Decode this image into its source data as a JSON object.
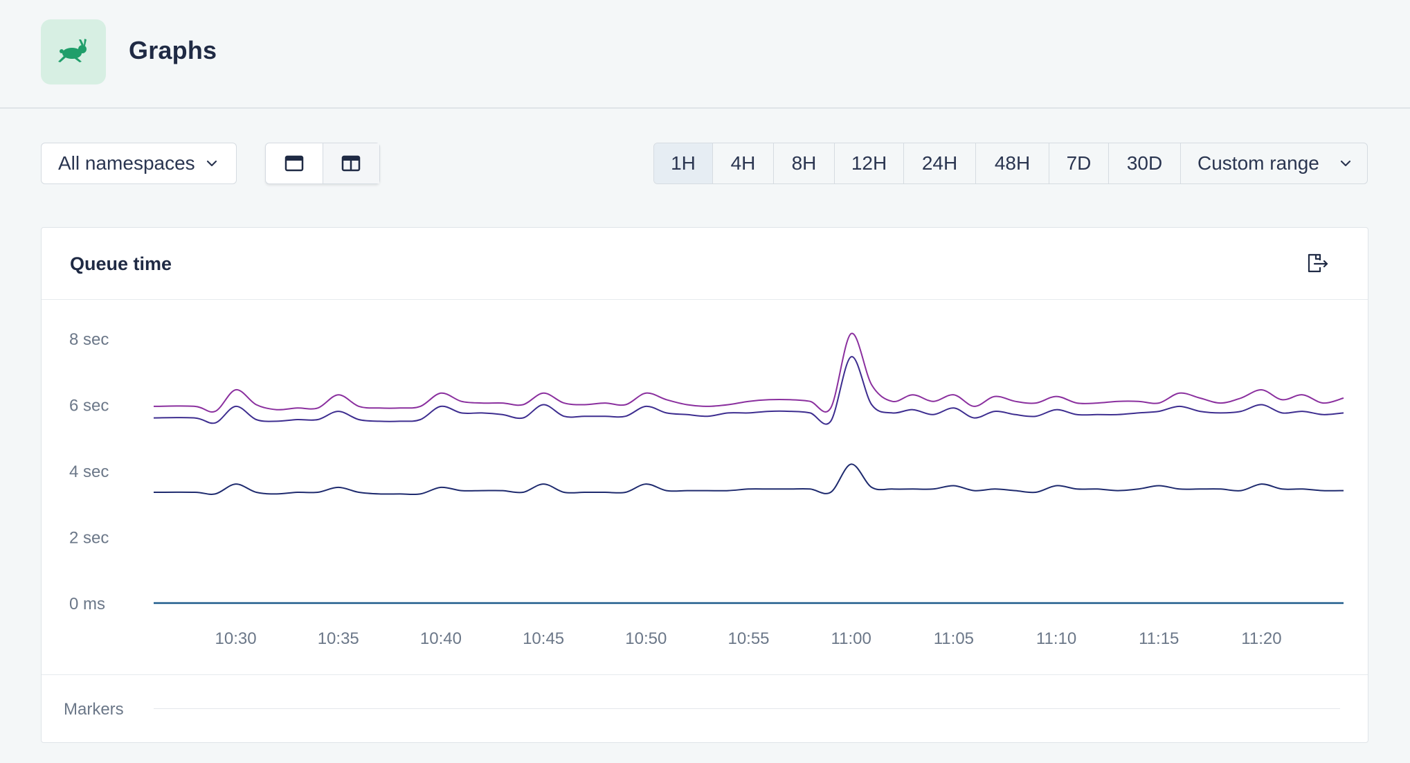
{
  "header": {
    "title": "Graphs",
    "logo_icon": "rabbit-logo-icon",
    "logo_bg": "#d7efe3",
    "logo_color": "#1f9e6a"
  },
  "toolbar": {
    "namespace_select": "All namespaces",
    "layout_buttons": [
      {
        "name": "single-column-layout",
        "icon": "single-column-icon"
      },
      {
        "name": "two-column-layout",
        "icon": "two-column-icon"
      }
    ],
    "ranges": [
      "1H",
      "4H",
      "8H",
      "12H",
      "24H",
      "48H",
      "7D",
      "30D"
    ],
    "active_range": "1H",
    "custom_range": "Custom range"
  },
  "card": {
    "title": "Queue time",
    "export_icon": "export-file-icon",
    "markers_label": "Markers"
  },
  "chart_data": {
    "type": "line",
    "title": "Queue time",
    "y_unit": "sec",
    "ylim": [
      0,
      8
    ],
    "y_ticks": [
      {
        "value": 8,
        "label": "8 sec"
      },
      {
        "value": 6,
        "label": "6 sec"
      },
      {
        "value": 4,
        "label": "4 sec"
      },
      {
        "value": 2,
        "label": "2 sec"
      },
      {
        "value": 0,
        "label": "0 ms"
      }
    ],
    "x_ticks": [
      "10:30",
      "10:35",
      "10:40",
      "10:45",
      "10:50",
      "10:55",
      "11:00",
      "11:05",
      "11:10",
      "11:15",
      "11:20"
    ],
    "x_range": [
      "10:26",
      "11:24"
    ],
    "legend": "none",
    "grid": false,
    "series": [
      {
        "color": "#8a2f9e",
        "x": [
          "10:26",
          "10:28",
          "10:29",
          "10:30",
          "10:31",
          "10:32",
          "10:33",
          "10:34",
          "10:35",
          "10:36",
          "10:37",
          "10:38",
          "10:39",
          "10:40",
          "10:41",
          "10:42",
          "10:43",
          "10:44",
          "10:45",
          "10:46",
          "10:47",
          "10:48",
          "10:49",
          "10:50",
          "10:51",
          "10:52",
          "10:53",
          "10:54",
          "10:55",
          "10:56",
          "10:57",
          "10:58",
          "10:59",
          "11:00",
          "11:01",
          "11:02",
          "11:03",
          "11:04",
          "11:05",
          "11:06",
          "11:07",
          "11:08",
          "11:09",
          "11:10",
          "11:11",
          "11:12",
          "11:13",
          "11:14",
          "11:15",
          "11:16",
          "11:17",
          "11:18",
          "11:19",
          "11:20",
          "11:21",
          "11:22",
          "11:23",
          "11:24"
        ],
        "y": [
          5.95,
          5.95,
          5.8,
          6.45,
          6.0,
          5.85,
          5.9,
          5.9,
          6.3,
          5.95,
          5.9,
          5.9,
          5.95,
          6.35,
          6.1,
          6.05,
          6.05,
          6.0,
          6.35,
          6.05,
          6.0,
          6.05,
          6.0,
          6.35,
          6.15,
          6.0,
          5.95,
          6.0,
          6.1,
          6.15,
          6.15,
          6.1,
          5.9,
          8.15,
          6.6,
          6.1,
          6.3,
          6.1,
          6.3,
          5.95,
          6.25,
          6.1,
          6.05,
          6.25,
          6.05,
          6.05,
          6.1,
          6.1,
          6.05,
          6.35,
          6.2,
          6.05,
          6.2,
          6.45,
          6.15,
          6.3,
          6.05,
          6.2
        ]
      },
      {
        "color": "#3d2d8f",
        "x": [
          "10:26",
          "10:28",
          "10:29",
          "10:30",
          "10:31",
          "10:32",
          "10:33",
          "10:34",
          "10:35",
          "10:36",
          "10:37",
          "10:38",
          "10:39",
          "10:40",
          "10:41",
          "10:42",
          "10:43",
          "10:44",
          "10:45",
          "10:46",
          "10:47",
          "10:48",
          "10:49",
          "10:50",
          "10:51",
          "10:52",
          "10:53",
          "10:54",
          "10:55",
          "10:56",
          "10:57",
          "10:58",
          "10:59",
          "11:00",
          "11:01",
          "11:02",
          "11:03",
          "11:04",
          "11:05",
          "11:06",
          "11:07",
          "11:08",
          "11:09",
          "11:10",
          "11:11",
          "11:12",
          "11:13",
          "11:14",
          "11:15",
          "11:16",
          "11:17",
          "11:18",
          "11:19",
          "11:20",
          "11:21",
          "11:22",
          "11:23",
          "11:24"
        ],
        "y": [
          5.6,
          5.6,
          5.45,
          5.95,
          5.55,
          5.5,
          5.55,
          5.55,
          5.8,
          5.55,
          5.5,
          5.5,
          5.55,
          5.95,
          5.75,
          5.75,
          5.7,
          5.6,
          6.0,
          5.65,
          5.65,
          5.65,
          5.65,
          5.95,
          5.75,
          5.7,
          5.65,
          5.75,
          5.75,
          5.8,
          5.8,
          5.75,
          5.5,
          7.45,
          6.0,
          5.75,
          5.85,
          5.7,
          5.9,
          5.6,
          5.8,
          5.7,
          5.65,
          5.85,
          5.7,
          5.7,
          5.7,
          5.75,
          5.8,
          5.95,
          5.8,
          5.75,
          5.8,
          6.0,
          5.75,
          5.8,
          5.7,
          5.75
        ]
      },
      {
        "color": "#1e2a6e",
        "x": [
          "10:26",
          "10:28",
          "10:29",
          "10:30",
          "10:31",
          "10:32",
          "10:33",
          "10:34",
          "10:35",
          "10:36",
          "10:37",
          "10:38",
          "10:39",
          "10:40",
          "10:41",
          "10:42",
          "10:43",
          "10:44",
          "10:45",
          "10:46",
          "10:47",
          "10:48",
          "10:49",
          "10:50",
          "10:51",
          "10:52",
          "10:53",
          "10:54",
          "10:55",
          "10:56",
          "10:57",
          "10:58",
          "10:59",
          "11:00",
          "11:01",
          "11:02",
          "11:03",
          "11:04",
          "11:05",
          "11:06",
          "11:07",
          "11:08",
          "11:09",
          "11:10",
          "11:11",
          "11:12",
          "11:13",
          "11:14",
          "11:15",
          "11:16",
          "11:17",
          "11:18",
          "11:19",
          "11:20",
          "11:21",
          "11:22",
          "11:23",
          "11:24"
        ],
        "y": [
          3.35,
          3.35,
          3.3,
          3.6,
          3.35,
          3.3,
          3.35,
          3.35,
          3.5,
          3.35,
          3.3,
          3.3,
          3.3,
          3.5,
          3.4,
          3.4,
          3.4,
          3.35,
          3.6,
          3.35,
          3.35,
          3.35,
          3.35,
          3.6,
          3.4,
          3.4,
          3.4,
          3.4,
          3.45,
          3.45,
          3.45,
          3.45,
          3.35,
          4.2,
          3.5,
          3.45,
          3.45,
          3.45,
          3.55,
          3.4,
          3.45,
          3.4,
          3.35,
          3.55,
          3.45,
          3.45,
          3.4,
          3.45,
          3.55,
          3.45,
          3.45,
          3.45,
          3.4,
          3.6,
          3.45,
          3.45,
          3.4,
          3.4
        ]
      },
      {
        "color": "#1d5a8a",
        "x": [
          "10:26",
          "11:24"
        ],
        "y": [
          0,
          0
        ]
      }
    ]
  }
}
